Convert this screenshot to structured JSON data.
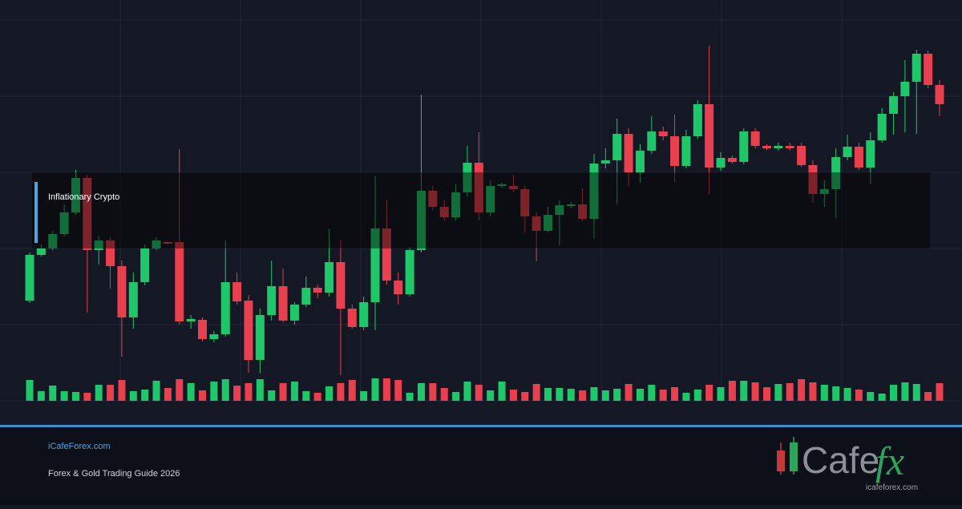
{
  "chart_data": {
    "type": "candlestick",
    "ylim": [
      0,
      500
    ],
    "grid": true,
    "colors": {
      "up": "#1fc76a",
      "down": "#e8404f"
    },
    "annotation": "Inflationary Crypto",
    "open": [
      125,
      182,
      190,
      208,
      235,
      278,
      188,
      200,
      168,
      104,
      148,
      190,
      198,
      198,
      99,
      101,
      77,
      83,
      148,
      125,
      51,
      107,
      143,
      100,
      120,
      141,
      135,
      173,
      115,
      92,
      123,
      215,
      150,
      133,
      188,
      262,
      242,
      229,
      260,
      297,
      235,
      268,
      268,
      264,
      230,
      212,
      232,
      243,
      245,
      227,
      296,
      300,
      333,
      285,
      312,
      336,
      330,
      293,
      330,
      370,
      291,
      303,
      298,
      336,
      318,
      315,
      318,
      318,
      294,
      258,
      264,
      304,
      317,
      291,
      325,
      358,
      380,
      398,
      433,
      394
    ],
    "close": [
      182,
      190,
      208,
      235,
      278,
      188,
      200,
      168,
      104,
      148,
      190,
      200,
      196,
      99,
      102,
      77,
      83,
      148,
      124,
      51,
      107,
      143,
      100,
      120,
      141,
      135,
      173,
      115,
      92,
      123,
      215,
      150,
      133,
      188,
      262,
      242,
      229,
      260,
      297,
      235,
      268,
      270,
      264,
      230,
      212,
      232,
      244,
      245,
      227,
      296,
      300,
      333,
      285,
      312,
      336,
      330,
      293,
      330,
      370,
      291,
      303,
      298,
      336,
      318,
      315,
      318,
      315,
      294,
      258,
      264,
      304,
      317,
      291,
      325,
      358,
      380,
      398,
      433,
      394,
      370
    ],
    "high": [
      185,
      195,
      212,
      245,
      288,
      282,
      205,
      204,
      175,
      160,
      195,
      204,
      199,
      314,
      107,
      104,
      87,
      200,
      160,
      132,
      115,
      175,
      165,
      123,
      155,
      145,
      215,
      200,
      120,
      130,
      280,
      250,
      160,
      192,
      382,
      268,
      250,
      270,
      318,
      335,
      275,
      272,
      282,
      268,
      235,
      242,
      250,
      248,
      265,
      308,
      315,
      352,
      340,
      320,
      355,
      342,
      357,
      338,
      375,
      443,
      310,
      306,
      340,
      340,
      320,
      322,
      322,
      322,
      300,
      275,
      315,
      332,
      322,
      335,
      365,
      385,
      425,
      438,
      437,
      400
    ],
    "low": [
      122,
      180,
      188,
      205,
      232,
      110,
      170,
      140,
      55,
      90,
      144,
      188,
      195,
      95,
      90,
      74,
      73,
      80,
      120,
      35,
      35,
      100,
      98,
      95,
      117,
      128,
      130,
      32,
      90,
      88,
      88,
      145,
      120,
      130,
      185,
      238,
      225,
      225,
      255,
      225,
      230,
      265,
      260,
      210,
      174,
      210,
      194,
      240,
      224,
      202,
      290,
      245,
      268,
      272,
      308,
      325,
      273,
      290,
      327,
      258,
      287,
      296,
      295,
      315,
      313,
      312,
      312,
      292,
      247,
      242,
      228,
      300,
      288,
      270,
      322,
      332,
      335,
      333,
      390,
      355
    ],
    "volume": [
      26,
      12,
      19,
      12,
      11,
      10,
      20,
      20,
      26,
      12,
      14,
      25,
      16,
      27,
      22,
      13,
      24,
      27,
      19,
      22,
      27,
      13,
      22,
      24,
      12,
      10,
      18,
      22,
      26,
      12,
      28,
      28,
      26,
      10,
      22,
      22,
      16,
      11,
      24,
      20,
      13,
      24,
      14,
      11,
      21,
      16,
      16,
      15,
      13,
      17,
      13,
      15,
      21,
      15,
      20,
      14,
      17,
      10,
      14,
      20,
      17,
      25,
      25,
      23,
      17,
      21,
      22,
      27,
      23,
      20,
      18,
      16,
      14,
      11,
      9,
      20,
      23,
      21,
      11,
      22
    ]
  },
  "footer": {
    "site": "iCafeForex.com",
    "subtitle": "Forex & Gold Trading Guide 2026"
  },
  "logo": {
    "word": "Cafe",
    "mark": "fx",
    "url": "icafeforex.com"
  }
}
